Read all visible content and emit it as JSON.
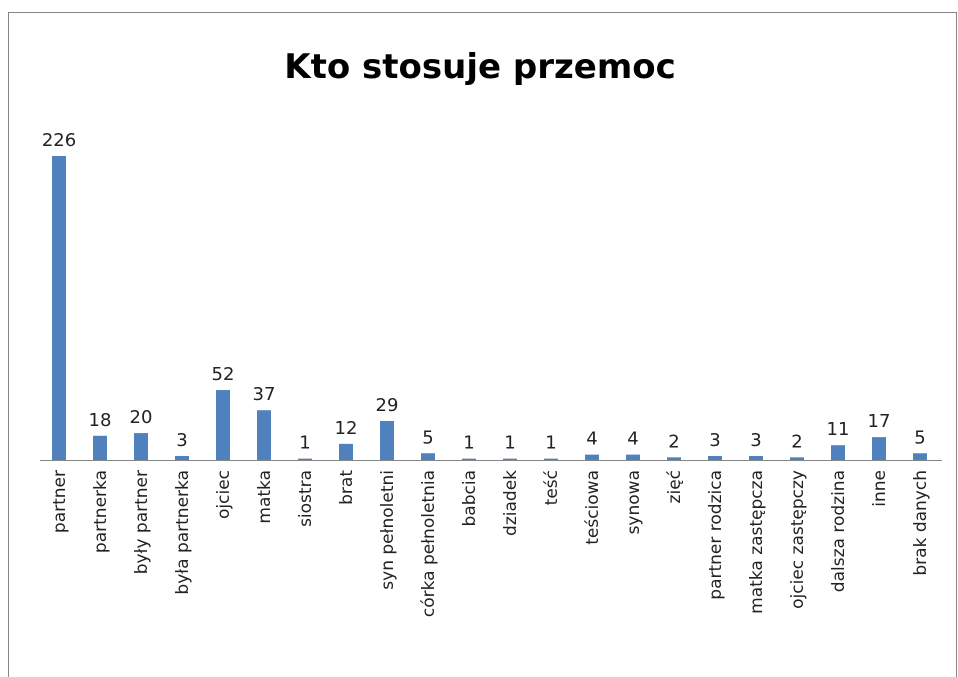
{
  "chart_data": {
    "type": "bar",
    "title": "Kto stosuje przemoc",
    "categories": [
      "partner",
      "partnerka",
      "były partner",
      "była partnerka",
      "ojciec",
      "matka",
      "siostra",
      "brat",
      "syn pełnoletni",
      "córka pełnoletnia",
      "babcia",
      "dziadek",
      "teść",
      "teściowa",
      "synowa",
      "zięć",
      "partner rodzica",
      "matka zastępcza",
      "ojciec zastępczy",
      "dalsza rodzina",
      "inne",
      "brak danych"
    ],
    "values": [
      226,
      18,
      20,
      3,
      52,
      37,
      1,
      12,
      29,
      5,
      1,
      1,
      1,
      4,
      4,
      2,
      3,
      3,
      2,
      11,
      17,
      5
    ],
    "color": "#4f81bd"
  }
}
